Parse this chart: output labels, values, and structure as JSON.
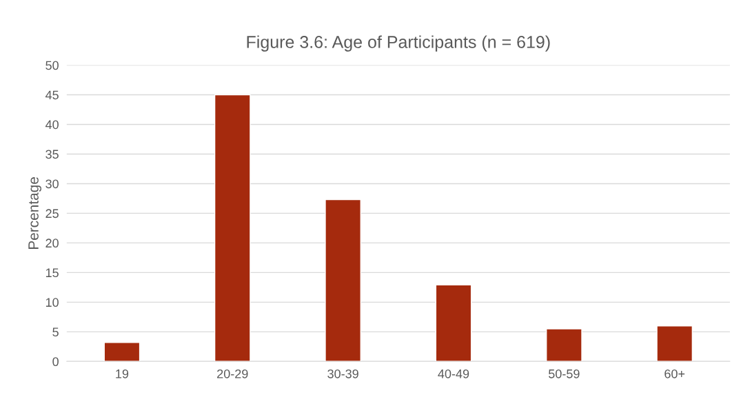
{
  "chart_data": {
    "type": "bar",
    "title": "Figure 3.6: Age of Participants (n = 619)",
    "ylabel": "Percentage",
    "categories": [
      "19",
      "20-29",
      "30-39",
      "40-49",
      "50-59",
      "60+"
    ],
    "values": [
      3.2,
      45.0,
      27.3,
      12.9,
      5.5,
      6.0
    ],
    "color": "#a52a0d",
    "ylim": [
      0,
      50
    ],
    "yticks": [
      0,
      5,
      10,
      15,
      20,
      25,
      30,
      35,
      40,
      45,
      50
    ],
    "grid": "y"
  }
}
